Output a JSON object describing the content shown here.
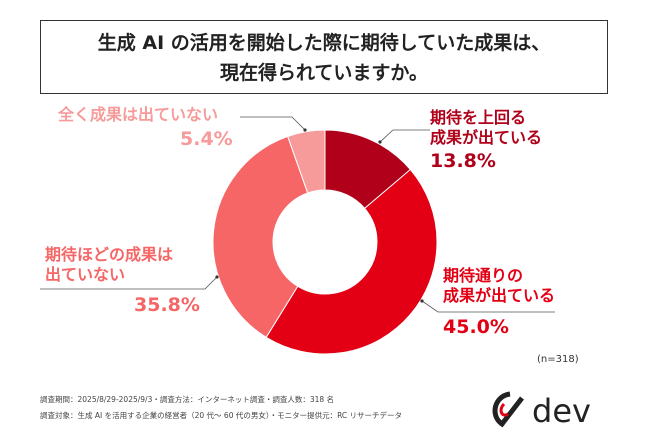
{
  "title_line1": "生成 AI の活用を開始した際に期待していた成果は、",
  "title_line2": "現在得られていますか。",
  "chart_data": {
    "type": "pie",
    "donut": true,
    "title": "生成 AI の活用を開始した際に期待していた成果は、現在得られていますか。",
    "categories": [
      "期待を上回る成果が出ている",
      "期待通りの成果が出ている",
      "期待ほどの成果は出ていない",
      "全く成果は出ていない"
    ],
    "values": [
      13.8,
      45.0,
      35.8,
      5.4
    ],
    "labels": [
      "13.8%",
      "45.0%",
      "35.8%",
      "5.4%"
    ],
    "colors": [
      "#B0001A",
      "#E30014",
      "#F76666",
      "#F79A9A"
    ]
  },
  "labels": {
    "s0": [
      "期待を上回る",
      "成果が出ている"
    ],
    "s1": [
      "期待通りの",
      "成果が出ている"
    ],
    "s2": [
      "期待ほどの成果は",
      "出ていない"
    ],
    "s3": [
      "全く成果は出ていない"
    ]
  },
  "n": "(n=318)",
  "footer": {
    "line1": "調査期間：2025/8/29-2025/9/3・調査方法：インターネット調査・調査人数：318 名",
    "line2": "調査対象：生成 AI を活用する企業の経営者（20 代～ 60 代の男女）・モニター提供元：RC リサーチデータ"
  },
  "logo": "dev"
}
